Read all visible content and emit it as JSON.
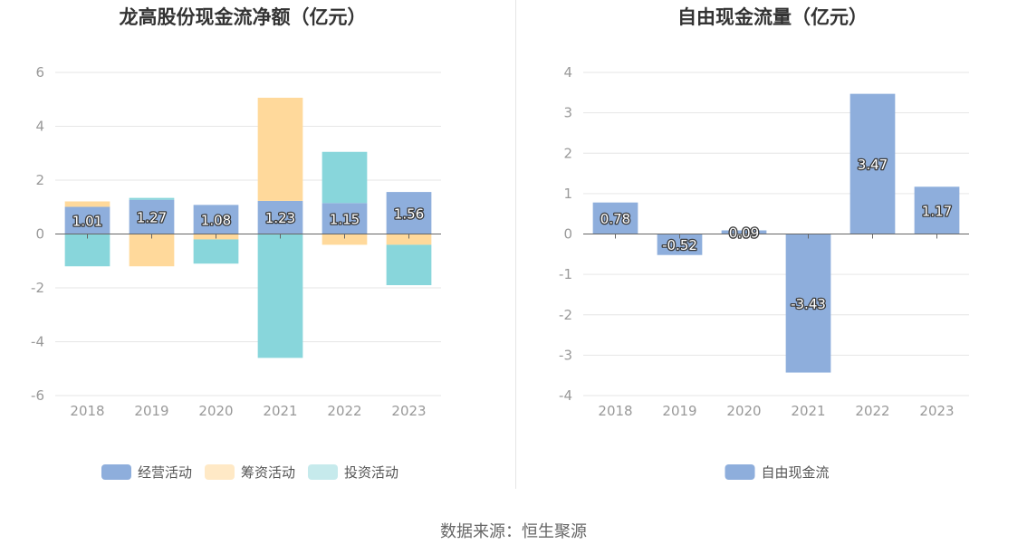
{
  "source": "数据来源：恒生聚源",
  "chart_data": [
    {
      "type": "bar",
      "stacked": true,
      "title": "龙高股份现金流净额（亿元）",
      "categories": [
        "2018",
        "2019",
        "2020",
        "2021",
        "2022",
        "2023"
      ],
      "ylim": [
        -6,
        6
      ],
      "yticks": [
        6,
        4,
        2,
        0,
        -2,
        -4,
        -6
      ],
      "grid": true,
      "legend_position": "bottom",
      "series": [
        {
          "name": "经营活动",
          "color": "#8eaedc",
          "values": [
            1.01,
            1.27,
            1.08,
            1.23,
            1.15,
            1.56
          ],
          "labels": [
            "1.01",
            "1.27",
            "1.08",
            "1.23",
            "1.15",
            "1.56"
          ]
        },
        {
          "name": "筹资活动",
          "color": "#ffd99b",
          "legend_color": "#ffe9c6",
          "values": [
            0.2,
            -1.2,
            -0.2,
            3.83,
            -0.4,
            -0.4
          ]
        },
        {
          "name": "投资活动",
          "color": "#88d6db",
          "legend_color": "#c6eaec",
          "values": [
            -1.2,
            0.07,
            -0.9,
            -4.6,
            1.9,
            -1.5
          ]
        }
      ]
    },
    {
      "type": "bar",
      "title": "自由现金流量（亿元）",
      "categories": [
        "2018",
        "2019",
        "2020",
        "2021",
        "2022",
        "2023"
      ],
      "ylim": [
        -4,
        4
      ],
      "yticks": [
        4,
        3,
        2,
        1,
        0,
        -1,
        -2,
        -3,
        -4
      ],
      "grid": true,
      "legend_position": "bottom",
      "series": [
        {
          "name": "自由现金流",
          "color": "#8eaedc",
          "values": [
            0.78,
            -0.52,
            0.09,
            -3.43,
            3.47,
            1.17
          ],
          "labels": [
            "0.78",
            "-0.52",
            "0.09",
            "-3.43",
            "3.47",
            "1.17"
          ]
        }
      ]
    }
  ]
}
